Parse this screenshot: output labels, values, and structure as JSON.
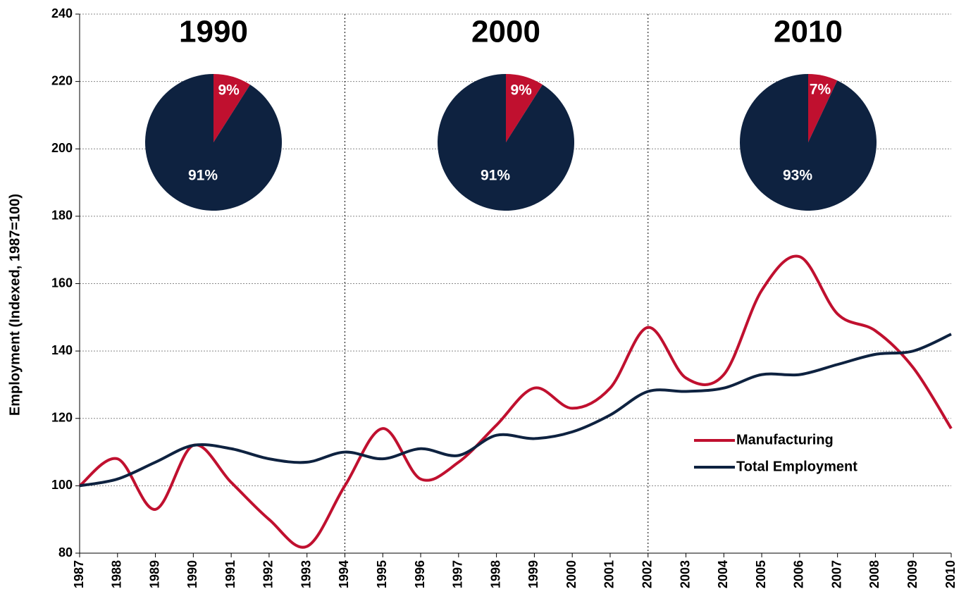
{
  "chart_data": [
    {
      "type": "line",
      "y_label": "Employment (Indexed, 1987=100)",
      "categories": [
        "1987",
        "1988",
        "1989",
        "1990",
        "1991",
        "1992",
        "1993",
        "1994",
        "1995",
        "1996",
        "1997",
        "1998",
        "1999",
        "2000",
        "2001",
        "2002",
        "2003",
        "2004",
        "2005",
        "2006",
        "2007",
        "2008",
        "2009",
        "2010"
      ],
      "series": [
        {
          "name": "Manufacturing",
          "color": "#c0102f",
          "values": [
            100,
            108,
            93,
            112,
            101,
            90,
            82,
            100,
            117,
            102,
            107,
            118,
            129,
            123,
            129,
            147,
            132,
            133,
            158,
            168,
            151,
            146,
            135,
            117
          ]
        },
        {
          "name": "Total Employment",
          "color": "#0e2240",
          "values": [
            100,
            102,
            107,
            112,
            111,
            108,
            107,
            110,
            108,
            111,
            109,
            115,
            114,
            116,
            121,
            128,
            128,
            129,
            133,
            133,
            136,
            139,
            140,
            145
          ]
        }
      ],
      "ylim": [
        80,
        240
      ],
      "yticks": [
        80,
        100,
        120,
        140,
        160,
        180,
        200,
        220,
        240
      ],
      "grid": true,
      "vlines": [
        "1994",
        "2002"
      ],
      "legend": "lower-right"
    },
    {
      "type": "pie",
      "title": "1990",
      "values": [
        9,
        91
      ],
      "value_labels": [
        "9%",
        "91%"
      ],
      "colors": [
        "#c0102f",
        "#0e2240"
      ]
    },
    {
      "type": "pie",
      "title": "2000",
      "values": [
        9,
        91
      ],
      "value_labels": [
        "9%",
        "91%"
      ],
      "colors": [
        "#c0102f",
        "#0e2240"
      ]
    },
    {
      "type": "pie",
      "title": "2010",
      "values": [
        7,
        93
      ],
      "value_labels": [
        "7%",
        "93%"
      ],
      "colors": [
        "#c0102f",
        "#0e2240"
      ]
    }
  ]
}
